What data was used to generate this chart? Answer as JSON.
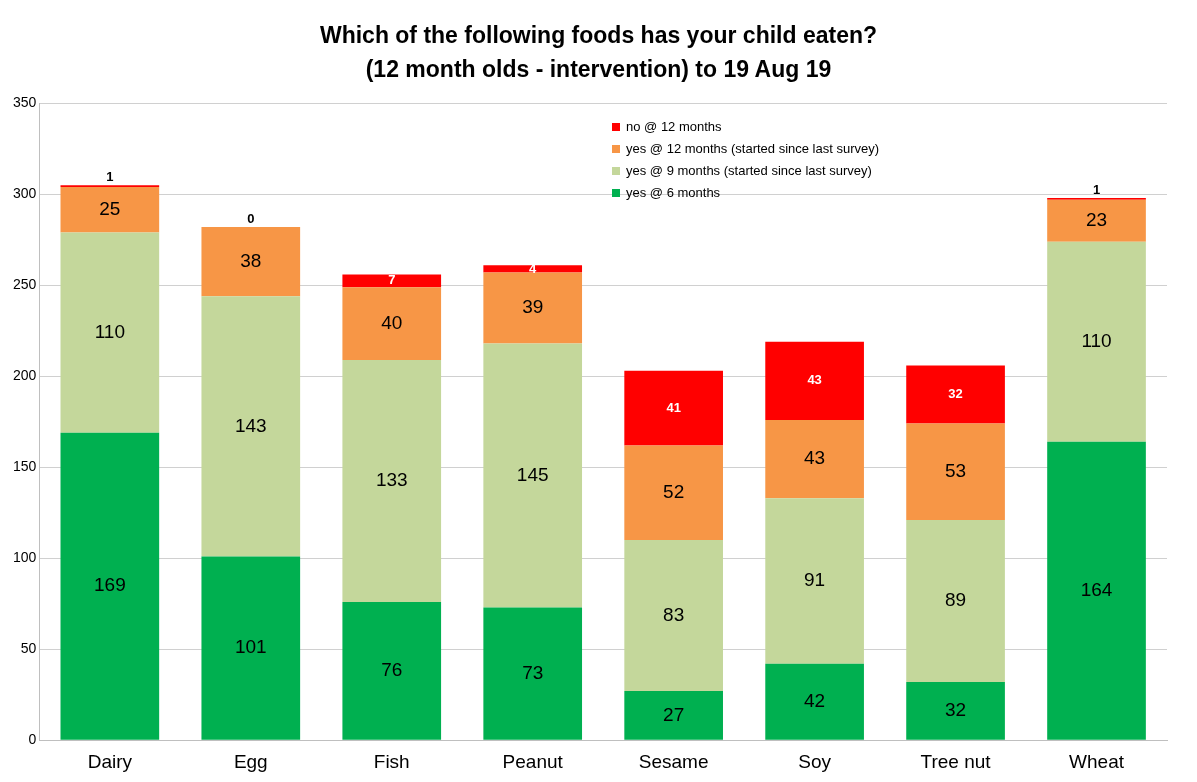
{
  "chart_data": {
    "type": "bar",
    "stacked": true,
    "title": "Which of the following foods has your child eaten?",
    "subtitle": "(12 month olds - intervention) to 19 Aug 19",
    "categories": [
      "Dairy",
      "Egg",
      "Fish",
      "Peanut",
      "Sesame",
      "Soy",
      "Tree nut",
      "Wheat"
    ],
    "series": [
      {
        "name": "yes @ 6 months",
        "color": "#00b050",
        "values": [
          169,
          101,
          76,
          73,
          27,
          42,
          32,
          164
        ]
      },
      {
        "name": "yes @ 9 months (started since last survey)",
        "color": "#c4d79b",
        "values": [
          110,
          143,
          133,
          145,
          83,
          91,
          89,
          110
        ]
      },
      {
        "name": "yes @ 12 months (started since last survey)",
        "color": "#f79646",
        "values": [
          25,
          38,
          40,
          39,
          52,
          43,
          53,
          23
        ]
      },
      {
        "name": "no @ 12 months",
        "color": "#ff0000",
        "values": [
          1,
          0,
          7,
          4,
          41,
          43,
          32,
          1
        ]
      }
    ],
    "ylim": [
      0,
      350
    ],
    "yticks": [
      0,
      50,
      100,
      150,
      200,
      250,
      300,
      350
    ],
    "grid": "y",
    "legend": "top right",
    "data_labels": true
  }
}
